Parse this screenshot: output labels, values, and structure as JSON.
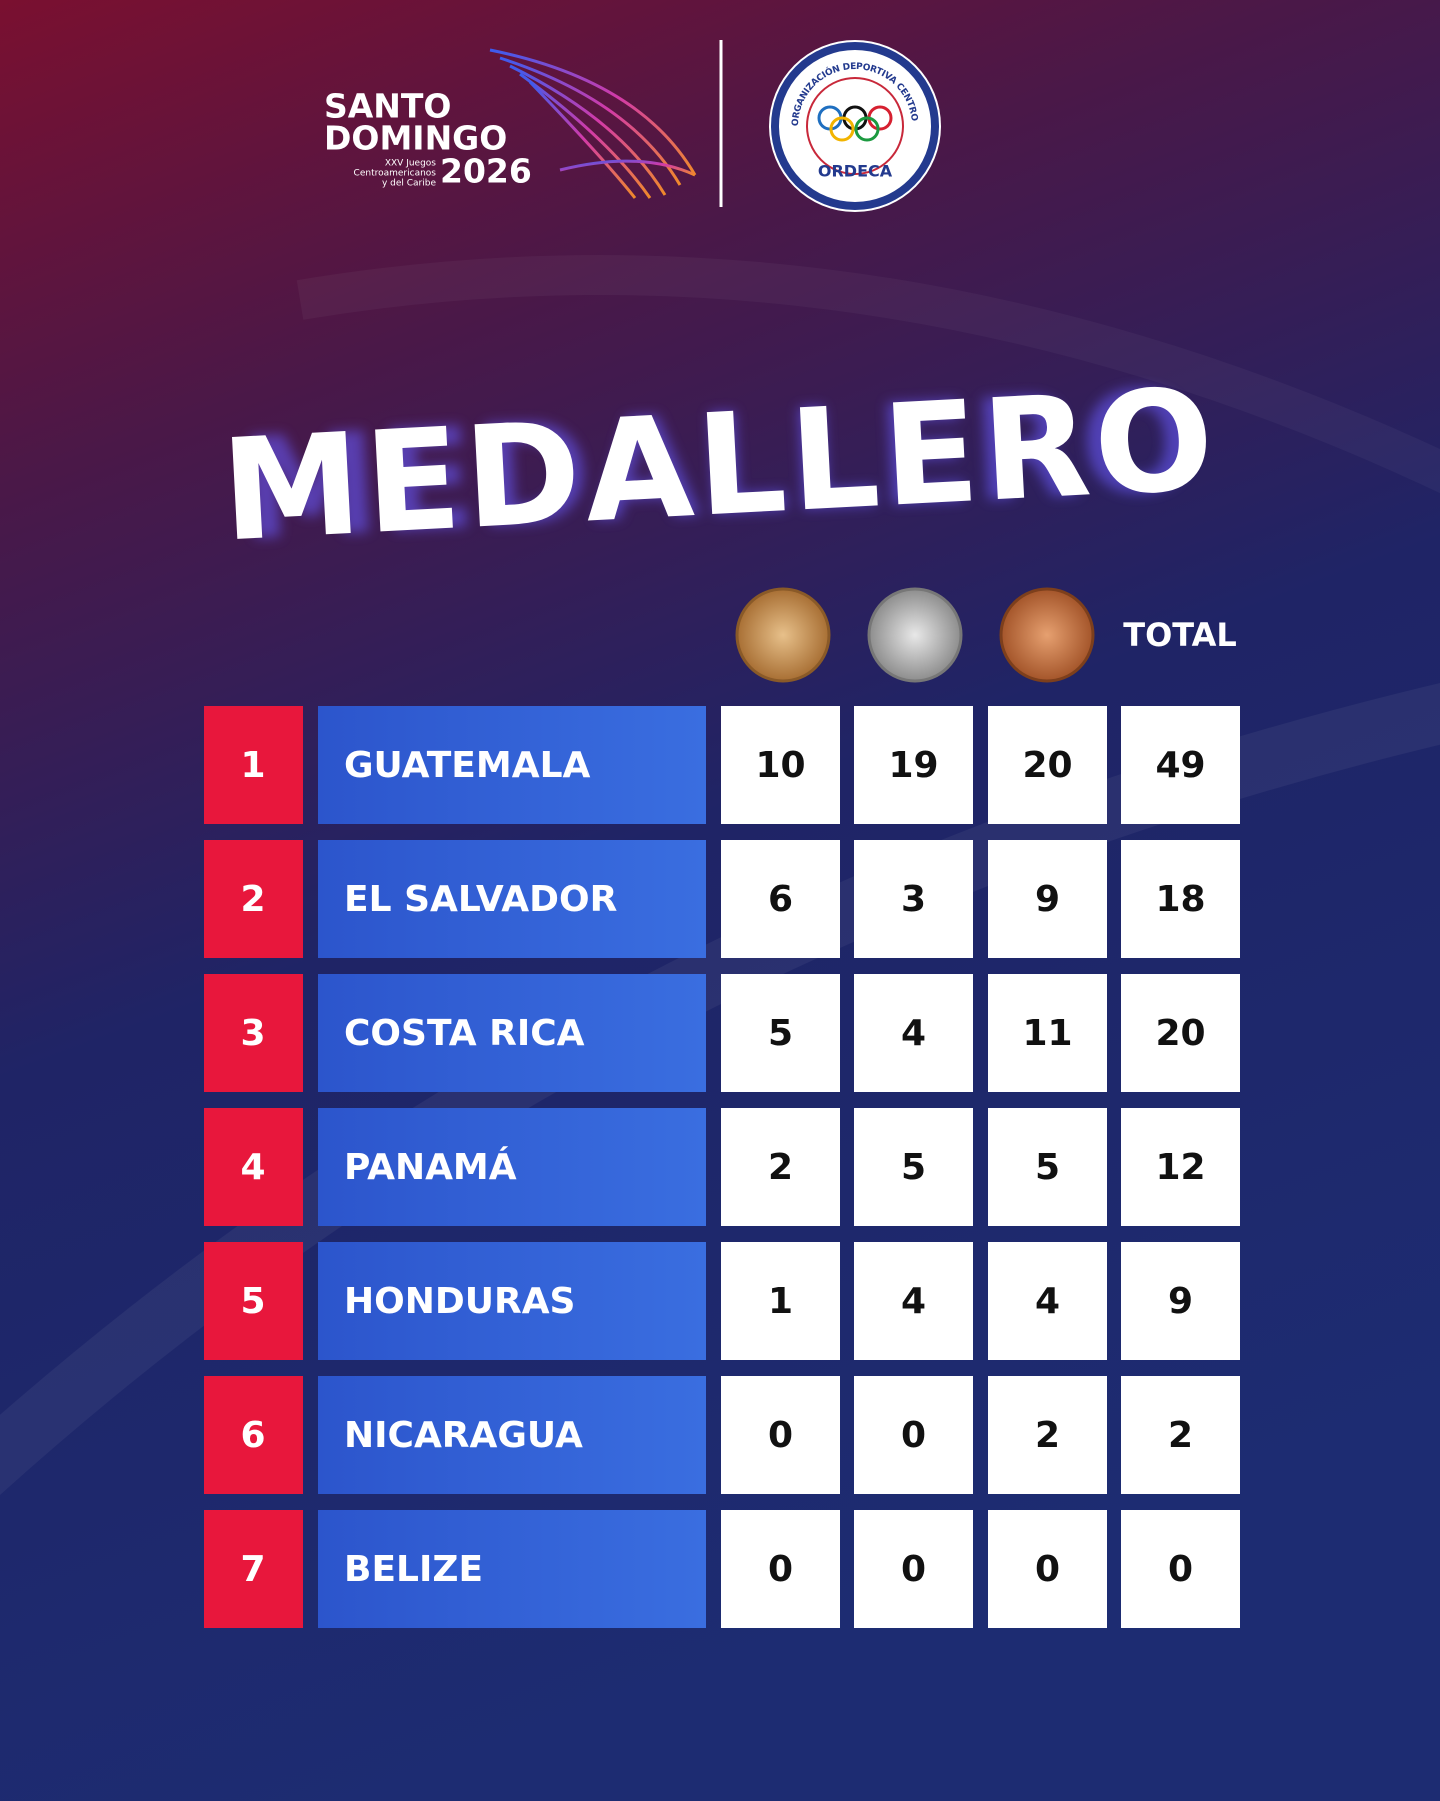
{
  "header": {
    "logo_left": {
      "line1": "SANTO",
      "line2": "DOMINGO",
      "sub": [
        "XXV Juegos",
        "Centroamericanos",
        "y del Caribe"
      ],
      "year": "2026"
    },
    "logo_right": {
      "ring_text": "ORGANIZACIÓN DEPORTIVA CENTRO AMERICANA",
      "name": "ORDECA"
    }
  },
  "title": "MEDALLERO",
  "table": {
    "total_label": "TOTAL",
    "rows": [
      [
        "1",
        "GUATEMALA",
        10,
        19,
        20,
        49
      ],
      [
        "2",
        "EL SALVADOR",
        6,
        3,
        9,
        18
      ],
      [
        "3",
        "COSTA RICA",
        5,
        4,
        11,
        20
      ],
      [
        "4",
        "PANAMÁ",
        2,
        5,
        5,
        12
      ],
      [
        "5",
        "HONDURAS",
        1,
        4,
        4,
        9
      ],
      [
        "6",
        "NICARAGUA",
        0,
        0,
        2,
        2
      ],
      [
        "7",
        "BELIZE",
        0,
        0,
        0,
        0
      ]
    ]
  }
}
